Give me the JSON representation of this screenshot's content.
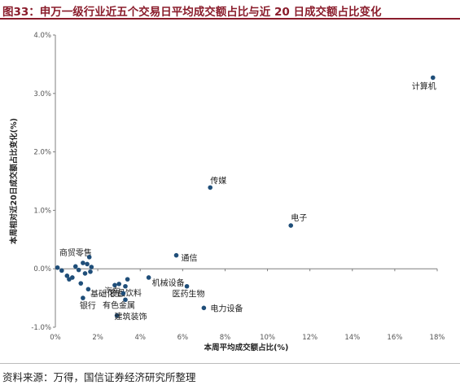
{
  "title": "图33：申万一级行业近五个交易日平均成交额占比与近 20 日成交额占比变化",
  "source": "资料来源：万得，国信证券经济研究所整理",
  "colors": {
    "point": "#1f4e79",
    "axis": "#7f7f7f",
    "title": "#8a1c2b"
  },
  "chart_data": {
    "type": "scatter",
    "title": "",
    "xlabel": "本周平均成交额占比(%)",
    "ylabel": "本周相对近20日成交额占比变化(%)",
    "xlim": [
      0,
      18
    ],
    "ylim": [
      -1.0,
      4.0
    ],
    "x_ticks": [
      0,
      2,
      4,
      6,
      8,
      10,
      12,
      14,
      16,
      18
    ],
    "x_tick_labels": [
      "0%",
      "2%",
      "4%",
      "6%",
      "8%",
      "10%",
      "12%",
      "14%",
      "16%",
      "18%"
    ],
    "y_ticks": [
      -1.0,
      0.0,
      1.0,
      2.0,
      3.0,
      4.0
    ],
    "y_tick_labels": [
      "-1.0%",
      "0.0%",
      "1.0%",
      "2.0%",
      "3.0%",
      "4.0%"
    ],
    "grid": false,
    "points": [
      {
        "x": 17.8,
        "y": 3.27,
        "label": "计算机"
      },
      {
        "x": 7.3,
        "y": 1.39,
        "label": "传媒"
      },
      {
        "x": 11.1,
        "y": 0.74,
        "label": "电子"
      },
      {
        "x": 5.7,
        "y": 0.23,
        "label": "通信"
      },
      {
        "x": 7.0,
        "y": -0.67,
        "label": "电力设备"
      },
      {
        "x": 6.2,
        "y": -0.3,
        "label": "医药生物"
      },
      {
        "x": 4.4,
        "y": -0.15,
        "label": "机械设备"
      },
      {
        "x": 3.3,
        "y": -0.53,
        "label": "有色金属"
      },
      {
        "x": 2.9,
        "y": -0.8,
        "label": "建筑装饰"
      },
      {
        "x": 2.8,
        "y": -0.28,
        "label": "基础化工"
      },
      {
        "x": 3.0,
        "y": -0.26,
        "label": "汽车"
      },
      {
        "x": 3.3,
        "y": -0.3,
        "label": "食品饮料"
      },
      {
        "x": 1.3,
        "y": -0.5,
        "label": "银行"
      },
      {
        "x": 1.3,
        "y": 0.1,
        "label": "商贸零售"
      },
      {
        "x": 0.1,
        "y": 0.02,
        "label": ""
      },
      {
        "x": 0.3,
        "y": -0.03,
        "label": ""
      },
      {
        "x": 0.55,
        "y": -0.12,
        "label": ""
      },
      {
        "x": 0.65,
        "y": -0.18,
        "label": ""
      },
      {
        "x": 0.8,
        "y": -0.15,
        "label": ""
      },
      {
        "x": 0.95,
        "y": 0.04,
        "label": ""
      },
      {
        "x": 1.1,
        "y": -0.02,
        "label": ""
      },
      {
        "x": 1.2,
        "y": -0.25,
        "label": ""
      },
      {
        "x": 1.4,
        "y": -0.08,
        "label": ""
      },
      {
        "x": 1.5,
        "y": 0.08,
        "label": ""
      },
      {
        "x": 1.55,
        "y": -0.35,
        "label": ""
      },
      {
        "x": 1.6,
        "y": 0.2,
        "label": ""
      },
      {
        "x": 1.65,
        "y": -0.05,
        "label": ""
      },
      {
        "x": 1.7,
        "y": 0.03,
        "label": ""
      },
      {
        "x": 3.4,
        "y": -0.18,
        "label": ""
      },
      {
        "x": 3.2,
        "y": -0.42,
        "label": ""
      }
    ]
  }
}
